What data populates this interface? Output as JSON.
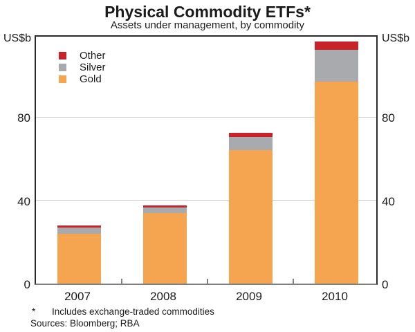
{
  "title": "Physical Commodity ETFs*",
  "subtitle": "Assets under management, by commodity",
  "axis": {
    "left_unit": "US$b",
    "right_unit": "US$b"
  },
  "footnote": {
    "marker": "*",
    "text": "Includes exchange-traded commodities"
  },
  "sources": "Sources: Bloomberg; RBA",
  "colors": {
    "gold": "#F5A54F",
    "silver": "#A8AAAD",
    "other": "#C9232A",
    "gridline": "#CCCCCC",
    "axis": "#7F7F7F",
    "frame": "#2A2A2A"
  },
  "legend": {
    "items": [
      {
        "label": "Other",
        "color_key": "other"
      },
      {
        "label": "Silver",
        "color_key": "silver"
      },
      {
        "label": "Gold",
        "color_key": "gold"
      }
    ]
  },
  "chart_data": {
    "type": "bar",
    "stacked": true,
    "title": "Physical Commodity ETFs*",
    "subtitle": "Assets under management, by commodity",
    "ylabel_left": "US$b",
    "ylabel_right": "US$b",
    "categories": [
      "2007",
      "2008",
      "2009",
      "2010"
    ],
    "series": [
      {
        "name": "Gold",
        "color_key": "gold",
        "values": [
          24,
          34,
          64,
          97
        ]
      },
      {
        "name": "Silver",
        "color_key": "silver",
        "values": [
          3,
          2.5,
          6.5,
          15.5
        ]
      },
      {
        "name": "Other",
        "color_key": "other",
        "values": [
          1,
          1,
          2,
          4
        ]
      }
    ],
    "totals": [
      28,
      37.5,
      72.5,
      116.5
    ],
    "ylim": [
      0,
      120
    ],
    "yticks": [
      0,
      40,
      80
    ],
    "grid": "horizontal",
    "legend_position": "top-left"
  }
}
